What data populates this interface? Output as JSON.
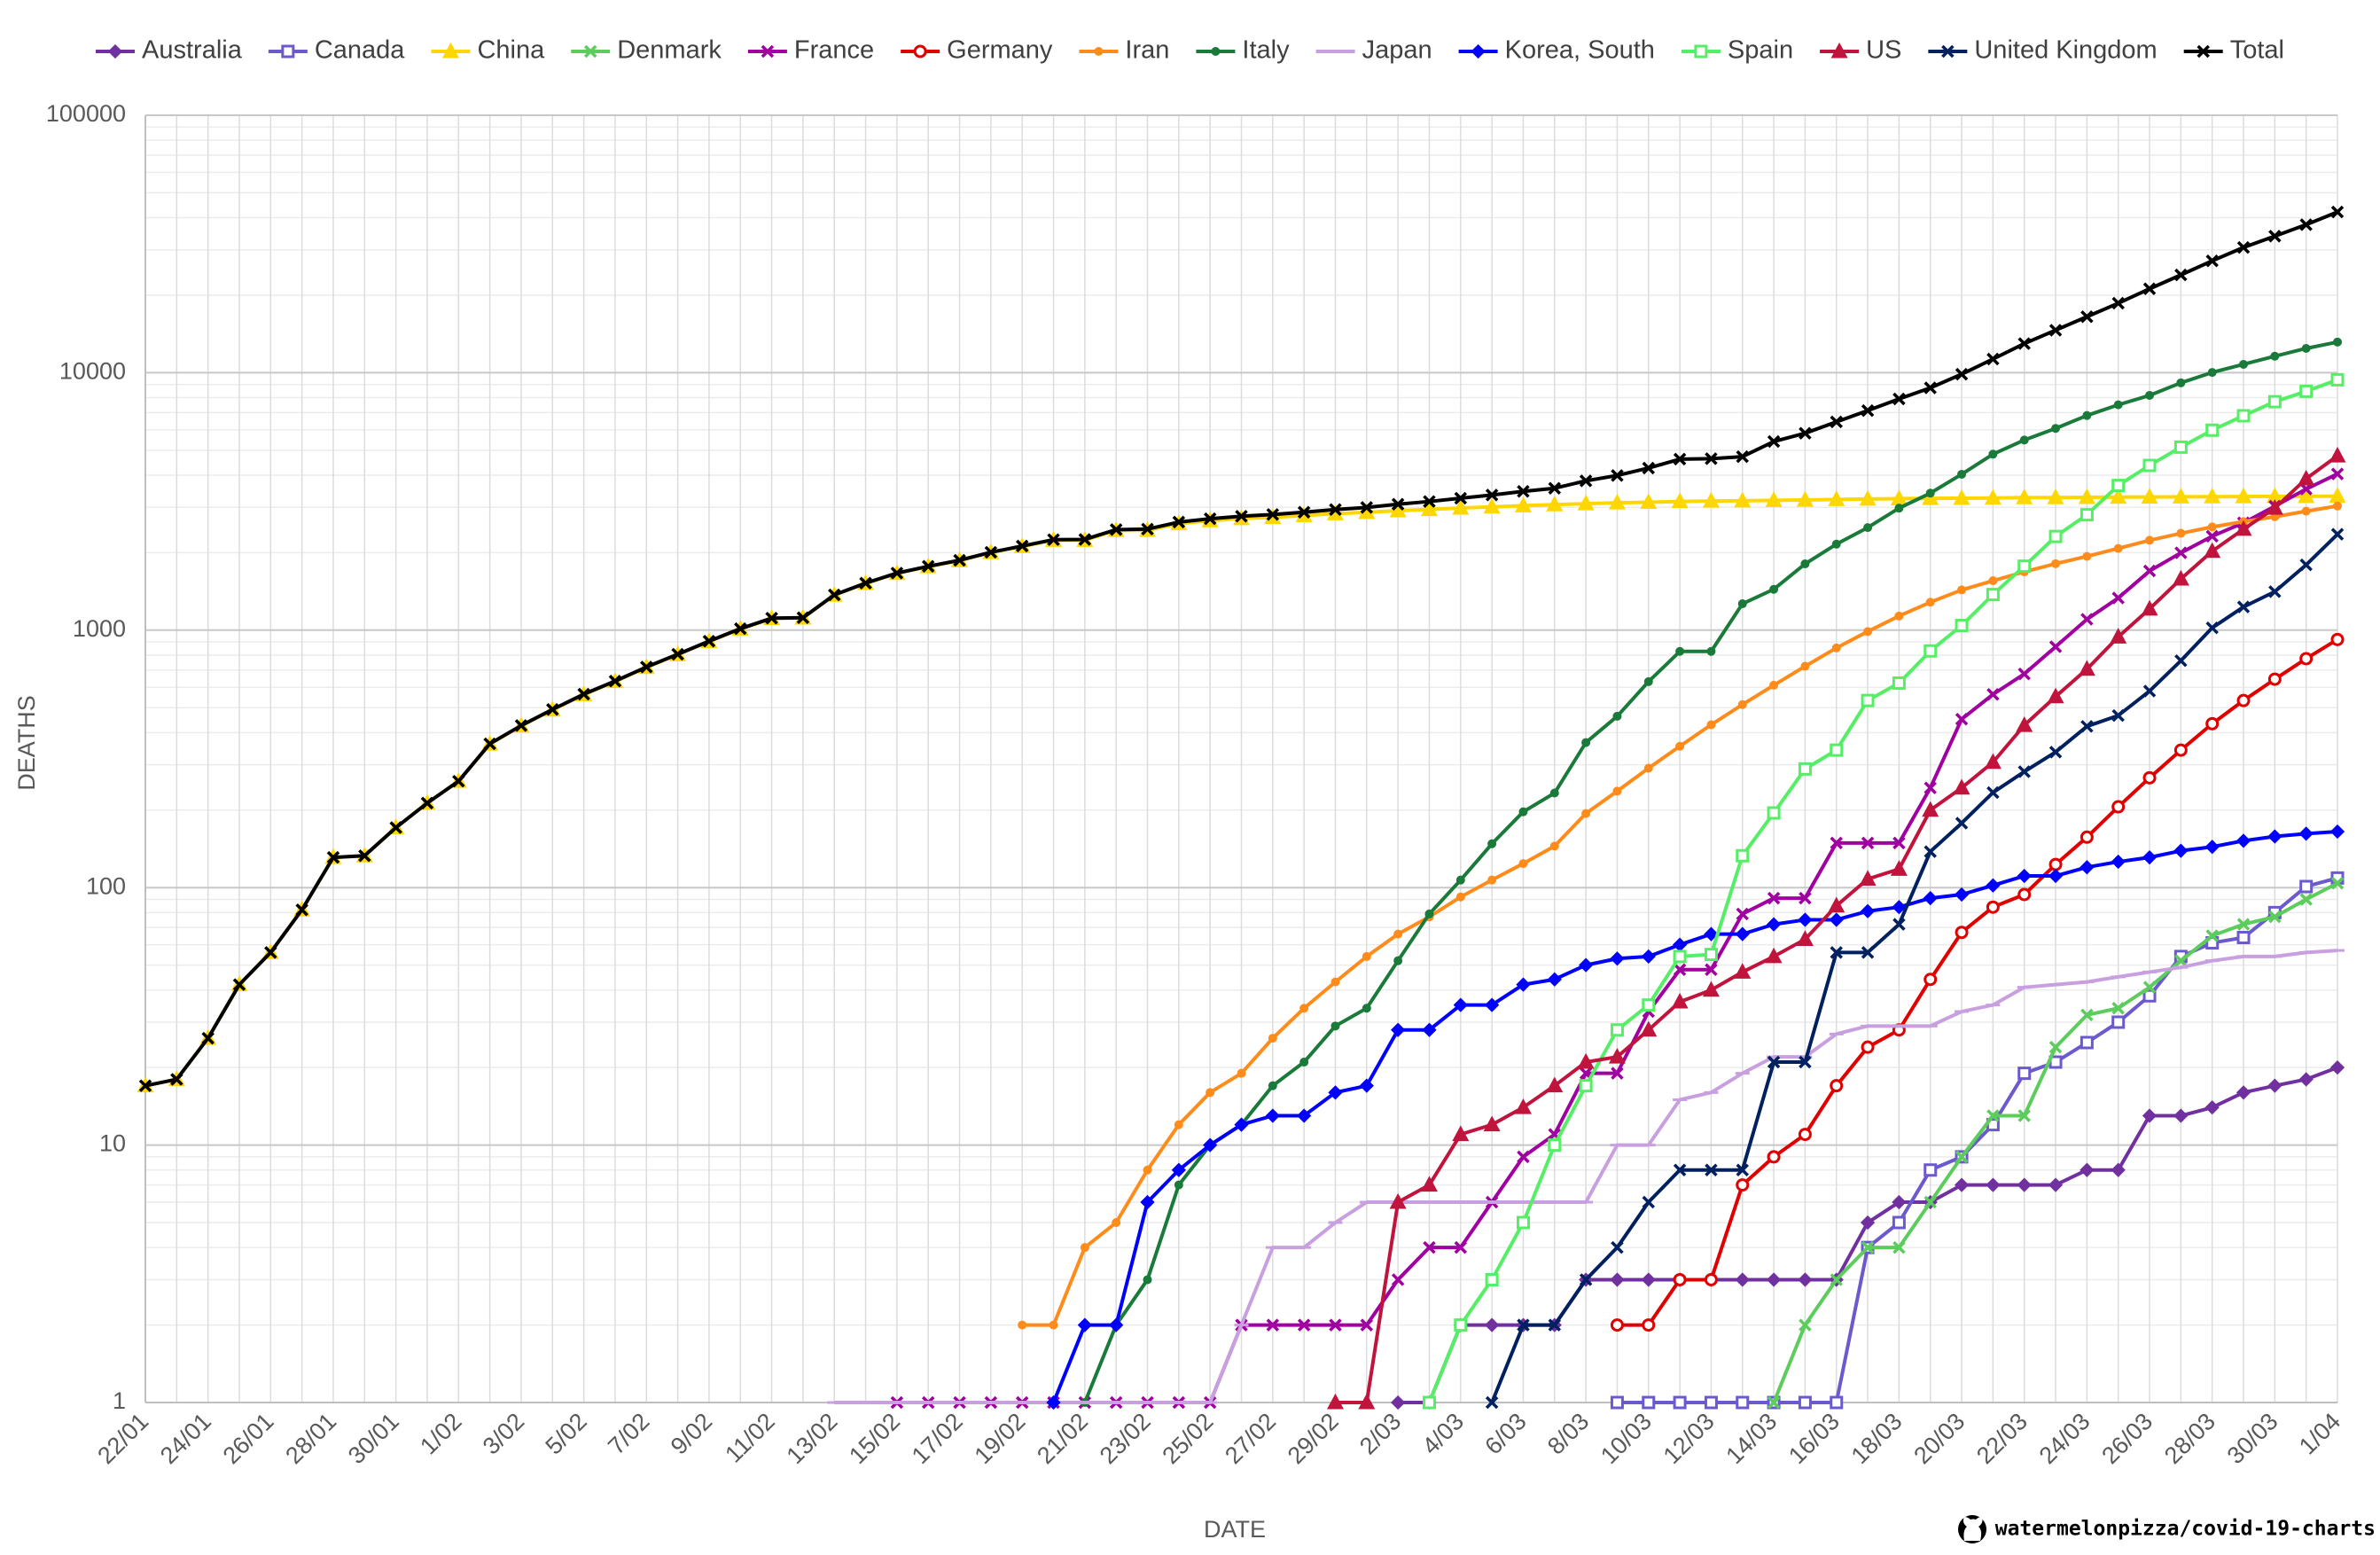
{
  "chart_data": {
    "type": "line",
    "x_label": "DATE",
    "y_label": "DEATHS",
    "source": "watermelonpizza/covid-19-charts",
    "log_scale": true,
    "grid": true,
    "legend": "top",
    "ylim": [
      1,
      100000
    ],
    "yticks": [
      1,
      10,
      100,
      1000,
      10000,
      100000
    ],
    "categories": [
      "22/01",
      null,
      "24/01",
      null,
      "26/01",
      null,
      "28/01",
      null,
      "30/01",
      null,
      "1/02",
      null,
      "3/02",
      null,
      "5/02",
      null,
      "7/02",
      null,
      "9/02",
      null,
      "11/02",
      null,
      "13/02",
      null,
      "15/02",
      null,
      "17/02",
      null,
      "19/02",
      null,
      "21/02",
      null,
      "23/02",
      null,
      "25/02",
      null,
      "27/02",
      null,
      "29/02",
      null,
      "2/03",
      null,
      "4/03",
      null,
      "6/03",
      null,
      "8/03",
      null,
      "10/03",
      null,
      "12/03",
      null,
      "14/03",
      null,
      "16/03",
      null,
      "18/03",
      null,
      "20/03",
      null,
      "22/03",
      null,
      "24/03",
      null,
      "26/03",
      null,
      "28/03",
      null,
      "30/03",
      null,
      "1/04"
    ],
    "series": [
      {
        "name": "Australia",
        "color": "#7030a0",
        "marker": "diamond",
        "values": [
          null,
          null,
          null,
          null,
          null,
          null,
          null,
          null,
          null,
          null,
          null,
          null,
          null,
          null,
          null,
          null,
          null,
          null,
          null,
          null,
          null,
          null,
          null,
          null,
          null,
          null,
          null,
          null,
          null,
          null,
          null,
          null,
          null,
          null,
          null,
          null,
          null,
          null,
          null,
          null,
          1,
          1,
          2,
          2,
          2,
          2,
          3,
          3,
          3,
          3,
          3,
          3,
          3,
          3,
          3,
          5,
          6,
          6,
          7,
          7,
          7,
          7,
          8,
          8,
          13,
          13,
          14,
          16,
          17,
          18,
          20
        ]
      },
      {
        "name": "Canada",
        "color": "#6a5acd",
        "marker": "square",
        "values": [
          null,
          null,
          null,
          null,
          null,
          null,
          null,
          null,
          null,
          null,
          null,
          null,
          null,
          null,
          null,
          null,
          null,
          null,
          null,
          null,
          null,
          null,
          null,
          null,
          null,
          null,
          null,
          null,
          null,
          null,
          null,
          null,
          null,
          null,
          null,
          null,
          null,
          null,
          null,
          null,
          null,
          null,
          null,
          null,
          null,
          null,
          null,
          1,
          1,
          1,
          1,
          1,
          1,
          1,
          1,
          4,
          5,
          8,
          9,
          12,
          19,
          21,
          25,
          30,
          38,
          54,
          61,
          64,
          80,
          101,
          109
        ]
      },
      {
        "name": "China",
        "color": "#ffd700",
        "marker": "triangle",
        "values": [
          17,
          18,
          26,
          42,
          56,
          82,
          131,
          133,
          171,
          213,
          259,
          361,
          425,
          490,
          562,
          632,
          717,
          804,
          904,
          1011,
          1111,
          1116,
          1368,
          1520,
          1662,
          1765,
          1863,
          2002,
          2114,
          2236,
          2236,
          2441,
          2443,
          2592,
          2663,
          2715,
          2744,
          2788,
          2835,
          2870,
          2912,
          2945,
          2981,
          3013,
          3045,
          3073,
          3100,
          3123,
          3140,
          3162,
          3173,
          3180,
          3194,
          3204,
          3218,
          3231,
          3242,
          3250,
          3253,
          3259,
          3274,
          3274,
          3281,
          3285,
          3291,
          3296,
          3299,
          3304,
          3308,
          3309,
          3316
        ]
      },
      {
        "name": "Denmark",
        "color": "#5ccc5c",
        "marker": "x",
        "values": [
          null,
          null,
          null,
          null,
          null,
          null,
          null,
          null,
          null,
          null,
          null,
          null,
          null,
          null,
          null,
          null,
          null,
          null,
          null,
          null,
          null,
          null,
          null,
          null,
          null,
          null,
          null,
          null,
          null,
          null,
          null,
          null,
          null,
          null,
          null,
          null,
          null,
          null,
          null,
          null,
          null,
          null,
          null,
          null,
          null,
          null,
          null,
          null,
          null,
          null,
          null,
          null,
          1,
          2,
          3,
          4,
          4,
          6,
          9,
          13,
          13,
          24,
          32,
          34,
          41,
          52,
          65,
          72,
          77,
          90,
          104
        ]
      },
      {
        "name": "France",
        "color": "#a000a0",
        "marker": "x",
        "values": [
          null,
          null,
          null,
          null,
          null,
          null,
          null,
          null,
          null,
          null,
          null,
          null,
          null,
          null,
          null,
          null,
          null,
          null,
          null,
          null,
          null,
          null,
          null,
          null,
          1,
          1,
          1,
          1,
          1,
          1,
          1,
          1,
          1,
          1,
          1,
          2,
          2,
          2,
          2,
          2,
          3,
          4,
          4,
          6,
          9,
          11,
          19,
          19,
          33,
          48,
          48,
          79,
          91,
          91,
          149,
          149,
          149,
          244,
          451,
          563,
          676,
          862,
          1102,
          1333,
          1698,
          1997,
          2317,
          2611,
          3030,
          3532,
          4043
        ]
      },
      {
        "name": "Germany",
        "color": "#e00000",
        "marker": "circle",
        "values": [
          null,
          null,
          null,
          null,
          null,
          null,
          null,
          null,
          null,
          null,
          null,
          null,
          null,
          null,
          null,
          null,
          null,
          null,
          null,
          null,
          null,
          null,
          null,
          null,
          null,
          null,
          null,
          null,
          null,
          null,
          null,
          null,
          null,
          null,
          null,
          null,
          null,
          null,
          null,
          null,
          null,
          null,
          null,
          null,
          null,
          null,
          null,
          2,
          2,
          3,
          3,
          7,
          9,
          11,
          17,
          24,
          28,
          44,
          67,
          84,
          94,
          123,
          157,
          206,
          267,
          342,
          433,
          533,
          645,
          775,
          920
        ]
      },
      {
        "name": "Iran",
        "color": "#ff8c1a",
        "marker": "dot",
        "values": [
          null,
          null,
          null,
          null,
          null,
          null,
          null,
          null,
          null,
          null,
          null,
          null,
          null,
          null,
          null,
          null,
          null,
          null,
          null,
          null,
          null,
          null,
          null,
          null,
          null,
          null,
          null,
          null,
          2,
          2,
          4,
          5,
          8,
          12,
          16,
          19,
          26,
          34,
          43,
          54,
          66,
          77,
          92,
          107,
          124,
          145,
          194,
          237,
          291,
          354,
          429,
          514,
          611,
          724,
          853,
          988,
          1135,
          1284,
          1433,
          1556,
          1685,
          1812,
          1934,
          2077,
          2234,
          2378,
          2517,
          2640,
          2757,
          2898,
          3036
        ]
      },
      {
        "name": "Italy",
        "color": "#1a7a3a",
        "marker": "dot",
        "values": [
          null,
          null,
          null,
          null,
          null,
          null,
          null,
          null,
          null,
          null,
          null,
          null,
          null,
          null,
          null,
          null,
          null,
          null,
          null,
          null,
          null,
          null,
          null,
          null,
          null,
          null,
          null,
          null,
          null,
          null,
          1,
          2,
          3,
          7,
          10,
          12,
          17,
          21,
          29,
          34,
          52,
          79,
          107,
          148,
          197,
          233,
          366,
          463,
          631,
          827,
          827,
          1266,
          1441,
          1809,
          2158,
          2503,
          2978,
          3405,
          4032,
          4825,
          5476,
          6077,
          6820,
          7503,
          8165,
          9134,
          10023,
          10779,
          11591,
          12428,
          13155
        ]
      },
      {
        "name": "Japan",
        "color": "#c8a0e0",
        "marker": "dash",
        "values": [
          null,
          null,
          null,
          null,
          null,
          null,
          null,
          null,
          null,
          null,
          null,
          null,
          null,
          null,
          null,
          null,
          null,
          null,
          null,
          null,
          null,
          null,
          1,
          1,
          1,
          1,
          1,
          1,
          1,
          1,
          1,
          1,
          1,
          1,
          1,
          2,
          4,
          4,
          5,
          6,
          6,
          6,
          6,
          6,
          6,
          6,
          6,
          10,
          10,
          15,
          16,
          19,
          22,
          22,
          27,
          29,
          29,
          29,
          33,
          35,
          41,
          42,
          43,
          45,
          47,
          49,
          52,
          54,
          54,
          56,
          57
        ]
      },
      {
        "name": "Korea, South",
        "color": "#0000ff",
        "marker": "diamond",
        "values": [
          null,
          null,
          null,
          null,
          null,
          null,
          null,
          null,
          null,
          null,
          null,
          null,
          null,
          null,
          null,
          null,
          null,
          null,
          null,
          null,
          null,
          null,
          null,
          null,
          null,
          null,
          null,
          null,
          null,
          1,
          2,
          2,
          6,
          8,
          10,
          12,
          13,
          13,
          16,
          17,
          28,
          28,
          35,
          35,
          42,
          44,
          50,
          53,
          54,
          60,
          66,
          66,
          72,
          75,
          75,
          81,
          84,
          91,
          94,
          102,
          111,
          111,
          120,
          126,
          131,
          139,
          144,
          152,
          158,
          162,
          165
        ]
      },
      {
        "name": "Spain",
        "color": "#55ee66",
        "marker": "square",
        "values": [
          null,
          null,
          null,
          null,
          null,
          null,
          null,
          null,
          null,
          null,
          null,
          null,
          null,
          null,
          null,
          null,
          null,
          null,
          null,
          null,
          null,
          null,
          null,
          null,
          null,
          null,
          null,
          null,
          null,
          null,
          null,
          null,
          null,
          null,
          null,
          null,
          null,
          null,
          null,
          null,
          null,
          1,
          2,
          3,
          5,
          10,
          17,
          28,
          35,
          54,
          55,
          133,
          195,
          289,
          342,
          533,
          623,
          830,
          1043,
          1375,
          1772,
          2311,
          2808,
          3647,
          4365,
          5138,
          5982,
          6803,
          7716,
          8464,
          9387
        ]
      },
      {
        "name": "US",
        "color": "#c0143c",
        "marker": "triangle",
        "values": [
          null,
          null,
          null,
          null,
          null,
          null,
          null,
          null,
          null,
          null,
          null,
          null,
          null,
          null,
          null,
          null,
          null,
          null,
          null,
          null,
          null,
          null,
          null,
          null,
          null,
          null,
          null,
          null,
          null,
          null,
          null,
          null,
          null,
          null,
          null,
          null,
          null,
          null,
          1,
          1,
          6,
          7,
          11,
          12,
          14,
          17,
          21,
          22,
          28,
          36,
          40,
          47,
          54,
          63,
          85,
          108,
          118,
          200,
          244,
          307,
          427,
          552,
          706,
          942,
          1209,
          1581,
          2026,
          2467,
          2978,
          3873,
          4757
        ]
      },
      {
        "name": "United Kingdom",
        "color": "#002060",
        "marker": "x",
        "values": [
          null,
          null,
          null,
          null,
          null,
          null,
          null,
          null,
          null,
          null,
          null,
          null,
          null,
          null,
          null,
          null,
          null,
          null,
          null,
          null,
          null,
          null,
          null,
          null,
          null,
          null,
          null,
          null,
          null,
          null,
          null,
          null,
          null,
          null,
          null,
          null,
          null,
          null,
          null,
          null,
          null,
          null,
          null,
          1,
          2,
          2,
          3,
          4,
          6,
          8,
          8,
          8,
          21,
          21,
          56,
          56,
          72,
          138,
          178,
          234,
          282,
          336,
          423,
          466,
          580,
          761,
          1021,
          1231,
          1411,
          1793,
          2357
        ]
      },
      {
        "name": "Total",
        "color": "#000000",
        "marker": "x",
        "values": [
          17,
          18,
          26,
          42,
          56,
          82,
          131,
          133,
          171,
          213,
          259,
          362,
          426,
          492,
          564,
          634,
          719,
          806,
          906,
          1013,
          1113,
          1118,
          1371,
          1523,
          1666,
          1770,
          1868,
          2007,
          2122,
          2247,
          2251,
          2458,
          2469,
          2629,
          2708,
          2770,
          2814,
          2872,
          2941,
          2996,
          3085,
          3160,
          3254,
          3348,
          3460,
          3558,
          3802,
          3988,
          4262,
          4615,
          4634,
          4720,
          5404,
          5819,
          6440,
          7126,
          7905,
          8733,
          9867,
          11299,
          12973,
          14623,
          16497,
          18615,
          21181,
          23970,
          27198,
          30652,
          33925,
          37582,
          42107
        ]
      }
    ]
  }
}
